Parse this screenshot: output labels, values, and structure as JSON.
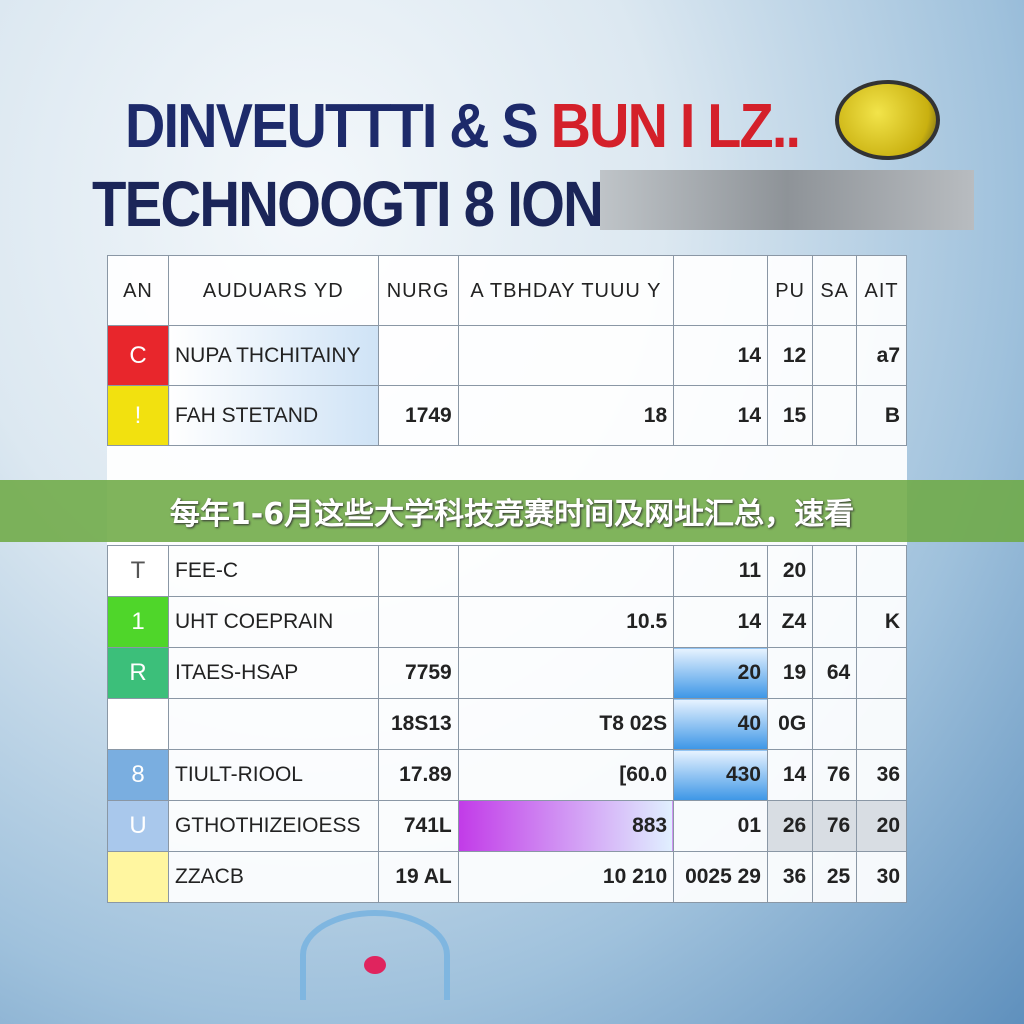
{
  "header": {
    "line1_a": "DINVEUTTTI & S",
    "line1_b": "BUN I",
    "line1_c": "LZ..",
    "line2": "TECHNOOGTI 8 ION"
  },
  "banner": {
    "text": "每年1-6月这些大学科技竞赛时间及网址汇总，速看",
    "color": "#6eaa46"
  },
  "table": {
    "columns": [
      "AN",
      "AUDUARS YD",
      "NURG",
      "A TBHDAY TUUU Y",
      "",
      "PU",
      "SA",
      "AIT"
    ],
    "rows": [
      {
        "mark": "C",
        "color": "#e8262c",
        "cells": [
          "NUPA THCHITAINY",
          "",
          "",
          "14",
          "12",
          "",
          "a7"
        ]
      },
      {
        "mark": "!",
        "color": "#f2e10f",
        "cells": [
          "FAH STETAND",
          "1749",
          "18",
          "14",
          "15",
          "",
          "B"
        ]
      },
      {
        "mark": "T",
        "color": "#ffffff",
        "cells": [
          "FEE-C",
          "",
          "",
          "11",
          "20",
          "",
          ""
        ]
      },
      {
        "mark": "1",
        "color": "#4fd62a",
        "cells": [
          "UHT COEPRAIN",
          "",
          "10.5",
          "14",
          "Z4",
          "",
          "K"
        ]
      },
      {
        "mark": "R",
        "color": "#3cbf7a",
        "cells": [
          "ITAES-HSAP",
          "7759",
          "",
          "20",
          "19",
          "64",
          ""
        ]
      },
      {
        "mark": "",
        "color": "#ffffff",
        "cells": [
          "",
          "18S13",
          "T8 02S",
          "40",
          "0G",
          "",
          ""
        ]
      },
      {
        "mark": "8",
        "color": "#7aaee0",
        "cells": [
          "TIULT-RIOOL",
          "17.89",
          "[60.0",
          "430",
          "14",
          "76",
          "36"
        ]
      },
      {
        "mark": "U",
        "color": "#a9c8ec",
        "cells": [
          "GTHOTHIZEIOESS",
          "741L",
          "883",
          "01",
          "26",
          "76",
          "20"
        ]
      },
      {
        "mark": "",
        "color": "#fff6a0",
        "cells": [
          "ZZACB",
          "19 AL",
          "10 210",
          "0025 29",
          "36",
          "25",
          "30"
        ]
      }
    ]
  }
}
